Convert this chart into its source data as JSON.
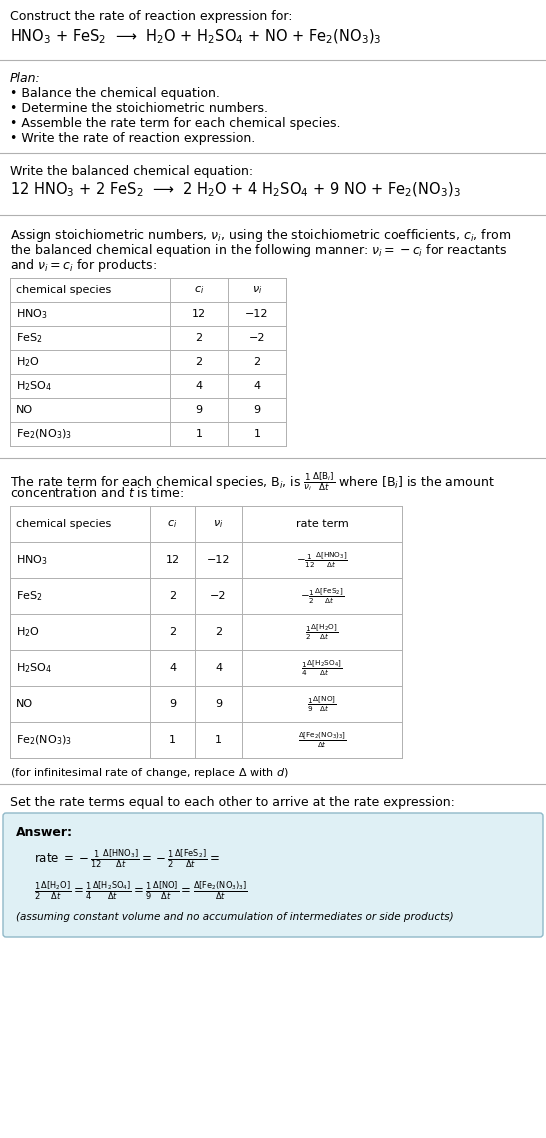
{
  "bg_color": "#ffffff",
  "title_line1": "Construct the rate of reaction expression for:",
  "reaction_unbalanced": "HNO$_3$ + FeS$_2$  ⟶  H$_2$O + H$_2$SO$_4$ + NO + Fe$_2$(NO$_3$)$_3$",
  "plan_header": "Plan:",
  "plan_items": [
    "• Balance the chemical equation.",
    "• Determine the stoichiometric numbers.",
    "• Assemble the rate term for each chemical species.",
    "• Write the rate of reaction expression."
  ],
  "balanced_header": "Write the balanced chemical equation:",
  "reaction_balanced": "12 HNO$_3$ + 2 FeS$_2$  ⟶  2 H$_2$O + 4 H$_2$SO$_4$ + 9 NO + Fe$_2$(NO$_3$)$_3$",
  "stoich_intro_lines": [
    "Assign stoichiometric numbers, $\\nu_i$, using the stoichiometric coefficients, $c_i$, from",
    "the balanced chemical equation in the following manner: $\\nu_i = -c_i$ for reactants",
    "and $\\nu_i = c_i$ for products:"
  ],
  "table1_headers": [
    "chemical species",
    "$c_i$",
    "$\\nu_i$"
  ],
  "table1_rows": [
    [
      "HNO$_3$",
      "12",
      "−12"
    ],
    [
      "FeS$_2$",
      "2",
      "−2"
    ],
    [
      "H$_2$O",
      "2",
      "2"
    ],
    [
      "H$_2$SO$_4$",
      "4",
      "4"
    ],
    [
      "NO",
      "9",
      "9"
    ],
    [
      "Fe$_2$(NO$_3$)$_3$",
      "1",
      "1"
    ]
  ],
  "rate_intro_lines": [
    "The rate term for each chemical species, B$_i$, is $\\frac{1}{\\nu_i}\\frac{\\Delta[\\mathrm{B}_i]}{\\Delta t}$ where [B$_i$] is the amount",
    "concentration and $t$ is time:"
  ],
  "table2_headers": [
    "chemical species",
    "$c_i$",
    "$\\nu_i$",
    "rate term"
  ],
  "table2_rows": [
    [
      "HNO$_3$",
      "12",
      "−12",
      "$-\\frac{1}{12}\\frac{\\Delta[\\mathrm{HNO_3}]}{\\Delta t}$"
    ],
    [
      "FeS$_2$",
      "2",
      "−2",
      "$-\\frac{1}{2}\\frac{\\Delta[\\mathrm{FeS_2}]}{\\Delta t}$"
    ],
    [
      "H$_2$O",
      "2",
      "2",
      "$\\frac{1}{2}\\frac{\\Delta[\\mathrm{H_2O}]}{\\Delta t}$"
    ],
    [
      "H$_2$SO$_4$",
      "4",
      "4",
      "$\\frac{1}{4}\\frac{\\Delta[\\mathrm{H_2SO_4}]}{\\Delta t}$"
    ],
    [
      "NO",
      "9",
      "9",
      "$\\frac{1}{9}\\frac{\\Delta[\\mathrm{NO}]}{\\Delta t}$"
    ],
    [
      "Fe$_2$(NO$_3$)$_3$",
      "1",
      "1",
      "$\\frac{\\Delta[\\mathrm{Fe_2(NO_3)_3}]}{\\Delta t}$"
    ]
  ],
  "infinitesimal_note": "(for infinitesimal rate of change, replace Δ with $d$)",
  "set_rate_text": "Set the rate terms equal to each other to arrive at the rate expression:",
  "answer_label": "Answer:",
  "answer_box_color": "#dff0f5",
  "answer_box_border": "#90b8c8",
  "answer_line1": "rate $= -\\frac{1}{12}\\frac{\\Delta[\\mathrm{HNO_3}]}{\\Delta t} = -\\frac{1}{2}\\frac{\\Delta[\\mathrm{FeS_2}]}{\\Delta t} =$",
  "answer_line2": "$\\frac{1}{2}\\frac{\\Delta[\\mathrm{H_2O}]}{\\Delta t} = \\frac{1}{4}\\frac{\\Delta[\\mathrm{H_2SO_4}]}{\\Delta t} = \\frac{1}{9}\\frac{\\Delta[\\mathrm{NO}]}{\\Delta t} = \\frac{\\Delta[\\mathrm{Fe_2(NO_3)_3}]}{\\Delta t}$",
  "answer_note": "(assuming constant volume and no accumulation of intermediates or side products)"
}
